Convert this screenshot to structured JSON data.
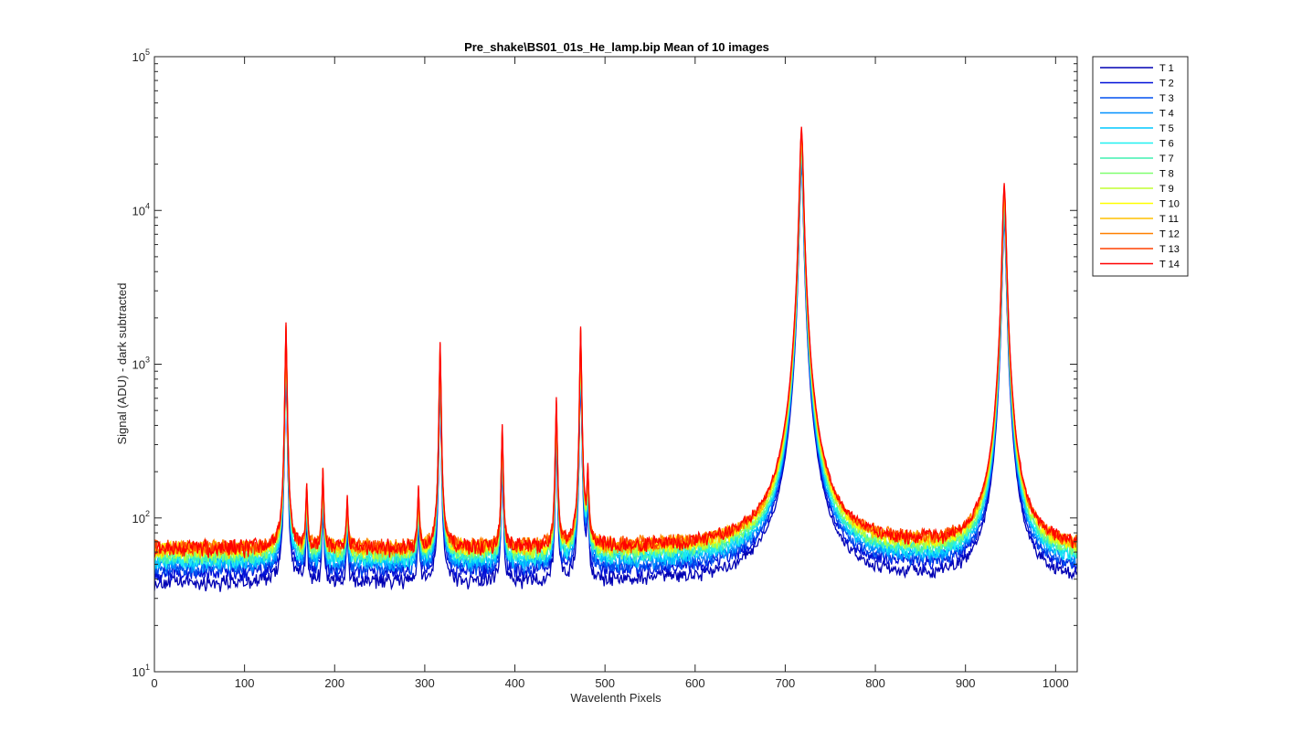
{
  "chart_data": {
    "type": "line",
    "title": "Pre_shake\\BS01_01s_He_lamp.bip  Mean of 10 images",
    "xlabel": "Wavelenth Pixels",
    "ylabel": "Signal (ADU) - dark subtracted",
    "xlim": [
      0,
      1024
    ],
    "ylim": [
      10,
      100000
    ],
    "yscale": "log",
    "grid": false,
    "legend_position": "outside-top-right",
    "x_ticks": [
      0,
      100,
      200,
      300,
      400,
      500,
      600,
      700,
      800,
      900,
      1000
    ],
    "y_ticks": [
      {
        "base": "10",
        "exp": "1",
        "value": 10
      },
      {
        "base": "10",
        "exp": "2",
        "value": 100
      },
      {
        "base": "10",
        "exp": "3",
        "value": 1000
      },
      {
        "base": "10",
        "exp": "4",
        "value": 10000
      },
      {
        "base": "10",
        "exp": "5",
        "value": 100000
      }
    ],
    "peaks": [
      {
        "x": 146,
        "y": 1800
      },
      {
        "x": 169,
        "y": 100
      },
      {
        "x": 187,
        "y": 150
      },
      {
        "x": 214,
        "y": 75
      },
      {
        "x": 293,
        "y": 95
      },
      {
        "x": 317,
        "y": 1330
      },
      {
        "x": 386,
        "y": 340
      },
      {
        "x": 446,
        "y": 540
      },
      {
        "x": 473,
        "y": 1700
      },
      {
        "x": 481,
        "y": 135
      },
      {
        "x": 718,
        "y": 35000
      },
      {
        "x": 943,
        "y": 15000
      }
    ],
    "series": [
      {
        "name": "T 1",
        "color": "#0000b4",
        "baseline": 38
      },
      {
        "name": "T 2",
        "color": "#0010d8",
        "baseline": 44
      },
      {
        "name": "T 3",
        "color": "#0050f0",
        "baseline": 47
      },
      {
        "name": "T 4",
        "color": "#0090ff",
        "baseline": 50
      },
      {
        "name": "T 5",
        "color": "#00c8ff",
        "baseline": 52
      },
      {
        "name": "T 6",
        "color": "#20f0f0",
        "baseline": 54
      },
      {
        "name": "T 7",
        "color": "#40f0b0",
        "baseline": 56
      },
      {
        "name": "T 8",
        "color": "#80ff70",
        "baseline": 58
      },
      {
        "name": "T 9",
        "color": "#c0ff30",
        "baseline": 60
      },
      {
        "name": "T 10",
        "color": "#ffff00",
        "baseline": 62
      },
      {
        "name": "T 11",
        "color": "#ffc000",
        "baseline": 63
      },
      {
        "name": "T 12",
        "color": "#ff8000",
        "baseline": 64
      },
      {
        "name": "T 13",
        "color": "#ff4000",
        "baseline": 64
      },
      {
        "name": "T 14",
        "color": "#ff0000",
        "baseline": 63
      }
    ]
  }
}
